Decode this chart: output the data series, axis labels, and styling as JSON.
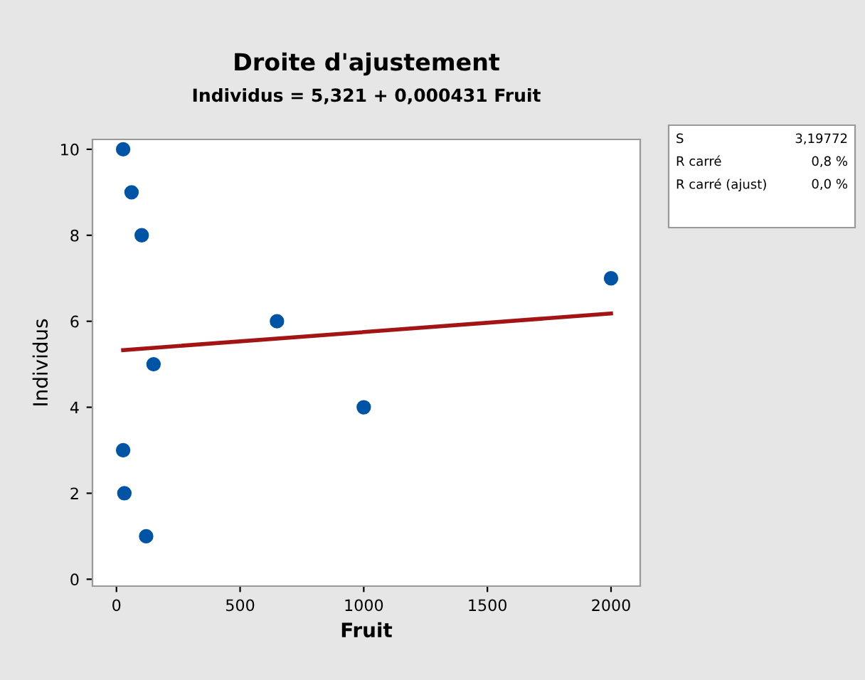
{
  "chart_data": {
    "type": "scatter",
    "title": "Droite d'ajustement",
    "subtitle": "Individus = 5,321 + 0,000431 Fruit",
    "xlabel": "Fruit",
    "ylabel": "Individus",
    "series": [
      {
        "color": "#0054a6",
        "marker": "circle",
        "x": [
          27,
          61,
          102,
          150,
          27,
          32,
          120,
          649,
          1000,
          2000
        ],
        "values": [
          10,
          9,
          8,
          5,
          3,
          2,
          1,
          6,
          4,
          7
        ]
      },
      {
        "type": "line",
        "color": "#a31515",
        "line_style": "solid",
        "x": [
          27,
          2000
        ],
        "values": [
          5.33,
          6.18
        ]
      }
    ],
    "xlim": [
      -97,
      2118
    ],
    "ylim": [
      -0.16,
      10.23
    ],
    "xticks": [
      0,
      500,
      1000,
      1500,
      2000
    ],
    "yticks": [
      0,
      2,
      4,
      6,
      8,
      10
    ],
    "grid": false,
    "legend": false,
    "annotations": [
      "S",
      "3,19772",
      "R carré",
      "0,8 %",
      "R carré (ajust)",
      "0,0 %"
    ]
  }
}
